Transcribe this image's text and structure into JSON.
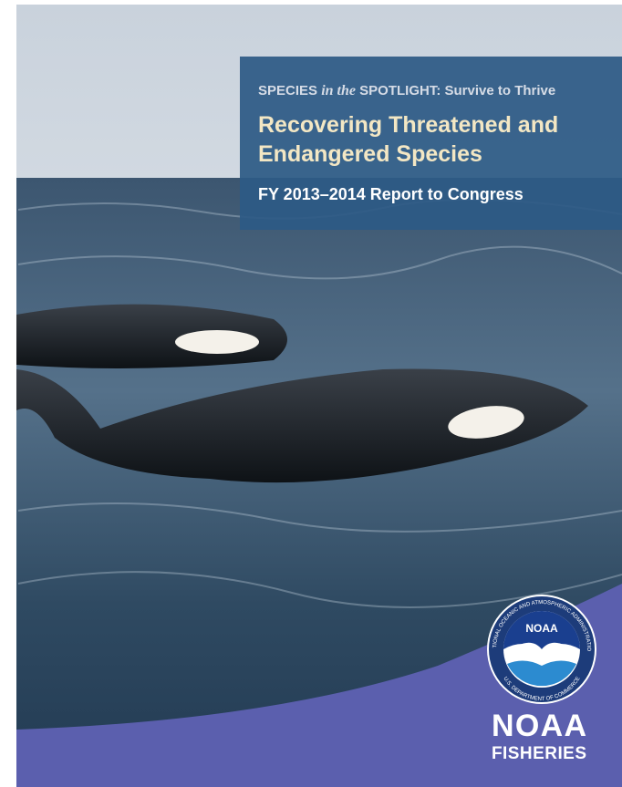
{
  "header": {
    "series_prefix": "SPECIES",
    "series_italic": "in the",
    "series_suffix": "SPOTLIGHT: Survive to Thrive",
    "title_line1": "Recovering Threatened and",
    "title_line2": "Endangered Species",
    "subtitle": "FY 2013–2014 Report to Congress"
  },
  "logo": {
    "seal_center": "NOAA",
    "seal_ring_top": "NATIONAL OCEANIC AND ATMOSPHERIC ADMINISTRATION",
    "seal_ring_bottom": "U.S. DEPARTMENT OF COMMERCE",
    "wordmark_line1": "NOAA",
    "wordmark_line2": "FISHERIES"
  }
}
